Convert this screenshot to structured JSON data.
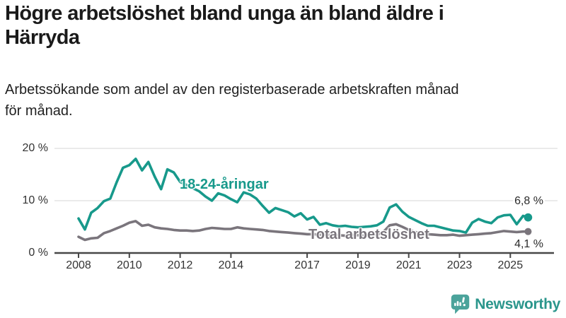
{
  "header": {
    "title_lines": [
      "Högre arbetslöshet bland unga än bland äldre i",
      "Härryda"
    ],
    "subtitle_lines": [
      "Arbetssökande som andel av den registerbaserade arbetskraften månad",
      "för månad."
    ]
  },
  "footer": {
    "brand": "Newsworthy",
    "brand_color": "#2b968c",
    "icon": "newsworthy-speech-bubble-bar-chart-icon",
    "icon_color": "#4ba39b"
  },
  "chart_data": {
    "type": "line",
    "title": "Högre arbetslöshet bland unga än bland äldre i Härryda",
    "subtitle": "Arbetssökande som andel av den registerbaserade arbetskraften månad för månad.",
    "unit": "%",
    "ylim": [
      0,
      20
    ],
    "grid": "horizontal",
    "legend": "inline-annotations",
    "axis_color": "#474747",
    "grid_color": "#dddddd",
    "tick_label_color": "#333333",
    "x": [
      2008,
      2008.25,
      2008.5,
      2008.75,
      2009,
      2009.25,
      2009.5,
      2009.75,
      2010,
      2010.25,
      2010.5,
      2010.75,
      2011,
      2011.25,
      2011.5,
      2011.75,
      2012,
      2012.25,
      2012.5,
      2012.75,
      2013,
      2013.25,
      2013.5,
      2013.75,
      2014,
      2014.25,
      2014.5,
      2014.75,
      2015,
      2015.25,
      2015.5,
      2015.75,
      2016,
      2016.25,
      2016.5,
      2016.75,
      2017,
      2017.25,
      2017.5,
      2017.75,
      2018,
      2018.25,
      2018.5,
      2018.75,
      2019,
      2019.25,
      2019.5,
      2019.75,
      2020,
      2020.25,
      2020.5,
      2020.75,
      2021,
      2021.25,
      2021.5,
      2021.75,
      2022,
      2022.25,
      2022.5,
      2022.75,
      2023,
      2023.25,
      2023.5,
      2023.75,
      2024,
      2024.25,
      2024.5,
      2024.75,
      2025,
      2025.25,
      2025.5,
      2025.7
    ],
    "series": [
      {
        "name": "18-24-åringar",
        "color": "#17998b",
        "end_label": "6,8 %",
        "end_value": 6.8,
        "values": [
          6.6,
          4.5,
          7.7,
          8.6,
          9.9,
          10.4,
          13.5,
          16.3,
          16.8,
          18.0,
          15.8,
          17.4,
          14.6,
          12.2,
          16.0,
          15.4,
          13.6,
          13.0,
          12.4,
          11.8,
          10.8,
          10.0,
          11.4,
          11.0,
          10.3,
          9.7,
          11.6,
          11.2,
          10.4,
          9.0,
          7.7,
          8.6,
          8.2,
          7.8,
          7.0,
          7.6,
          6.4,
          6.9,
          5.4,
          5.7,
          5.3,
          5.1,
          5.2,
          5.0,
          4.9,
          5.0,
          5.1,
          5.3,
          6.0,
          8.7,
          9.3,
          7.9,
          6.9,
          6.3,
          5.7,
          5.2,
          5.2,
          4.9,
          4.6,
          4.3,
          4.2,
          3.9,
          5.8,
          6.5,
          6.0,
          5.7,
          6.8,
          7.2,
          7.3,
          5.5,
          7.1,
          6.8
        ]
      },
      {
        "name": "Total arbetslöshet",
        "color": "#7a757c",
        "end_label": "4,1 %",
        "end_value": 4.1,
        "values": [
          3.1,
          2.5,
          2.8,
          2.9,
          3.8,
          4.2,
          4.7,
          5.2,
          5.8,
          6.1,
          5.2,
          5.4,
          4.9,
          4.7,
          4.6,
          4.4,
          4.3,
          4.3,
          4.2,
          4.3,
          4.6,
          4.8,
          4.7,
          4.6,
          4.6,
          4.9,
          4.7,
          4.6,
          4.5,
          4.4,
          4.2,
          4.1,
          4.0,
          3.9,
          3.8,
          3.7,
          3.6,
          3.6,
          3.5,
          3.5,
          3.4,
          3.4,
          3.3,
          3.4,
          3.4,
          3.3,
          3.4,
          3.5,
          4.0,
          5.3,
          5.5,
          5.0,
          4.4,
          4.0,
          3.8,
          3.6,
          3.5,
          3.4,
          3.4,
          3.5,
          3.3,
          3.4,
          3.5,
          3.6,
          3.7,
          3.8,
          4.0,
          4.2,
          4.1,
          4.0,
          4.1,
          4.1
        ]
      }
    ],
    "yticks": [
      {
        "value": 0,
        "label": "0 %"
      },
      {
        "value": 10,
        "label": "10 %"
      },
      {
        "value": 20,
        "label": "20 %"
      }
    ],
    "xticks": [
      {
        "year": 2008,
        "label": "2008"
      },
      {
        "year": 2010,
        "label": "2010"
      },
      {
        "year": 2012,
        "label": "2012"
      },
      {
        "year": 2014,
        "label": "2014"
      },
      {
        "year": 2017,
        "label": "2017"
      },
      {
        "year": 2019,
        "label": "2019"
      },
      {
        "year": 2021,
        "label": "2021"
      },
      {
        "year": 2023,
        "label": "2023"
      },
      {
        "year": 2025,
        "label": "2025"
      }
    ]
  }
}
